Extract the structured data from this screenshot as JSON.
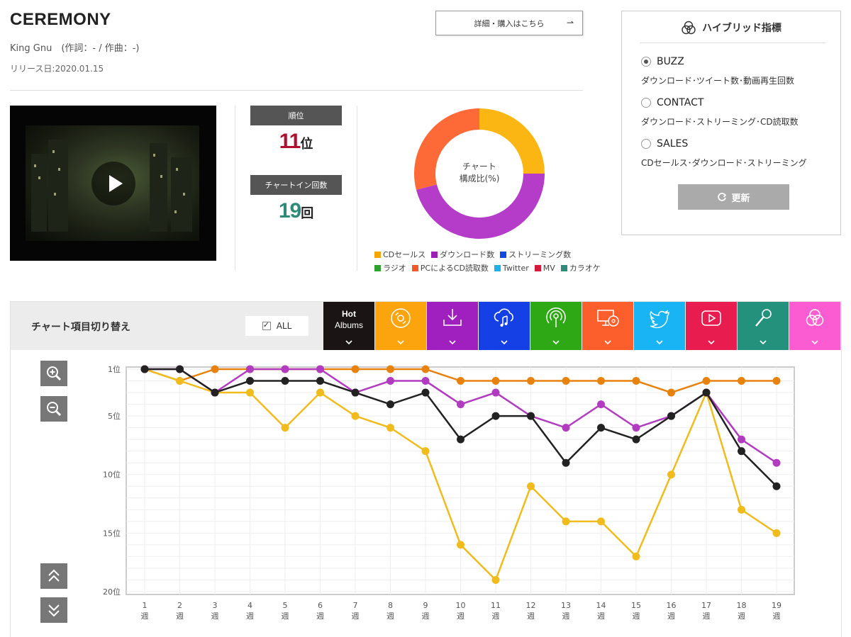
{
  "song": {
    "title": "CEREMONY",
    "artist_line": "King Gnu　(作詞：- / 作曲：-)",
    "release": "リリース日:2020.01.15",
    "buy_label": "詳細・購入はこちら",
    "buy_arrow": "⇀"
  },
  "stats": {
    "rank_label": "順位",
    "rank_value": "11",
    "rank_unit": "位",
    "rank_color": "#b01030",
    "chartin_label": "チャートイン回数",
    "chartin_value": "19",
    "chartin_unit": "回",
    "chartin_color": "#2e8b78"
  },
  "composition": {
    "center_label_1": "チャート",
    "center_label_2": "構成比(%)",
    "slices": [
      {
        "name": "CDセールス",
        "value": 25,
        "color": "#fcb614"
      },
      {
        "name": "ダウンロード数",
        "value": 46,
        "color": "#b43cc8"
      },
      {
        "name": "PCによるCD読取数",
        "value": 29,
        "color": "#fd6a38"
      }
    ],
    "legend_row1": [
      {
        "label": "CDセールス",
        "color": "#f5a400"
      },
      {
        "label": "ダウンロード数",
        "color": "#9b1fb5"
      },
      {
        "label": "ストリーミング数",
        "color": "#1048e0"
      }
    ],
    "legend_row2": [
      {
        "label": "ラジオ",
        "color": "#2ea02e"
      },
      {
        "label": "PCによるCD読取数",
        "color": "#f05a28"
      },
      {
        "label": "Twitter",
        "color": "#1eaee8"
      },
      {
        "label": "MV",
        "color": "#d6183a"
      },
      {
        "label": "カラオケ",
        "color": "#2e8b78"
      }
    ]
  },
  "hybrid": {
    "title": "ハイブリッド指標",
    "options": [
      {
        "label": "BUZZ",
        "desc": "ダウンロード･ツイート数･動画再生回数",
        "selected": true
      },
      {
        "label": "CONTACT",
        "desc": "ダウンロード･ストリーミング･CD読取数",
        "selected": false
      },
      {
        "label": "SALES",
        "desc": "CDセールス･ダウンロード･ストリーミング",
        "selected": false
      }
    ],
    "refresh_label": "更新"
  },
  "switcher": {
    "label": "チャート項目切り替え",
    "all_label": "ALL",
    "hot_line1": "Hot",
    "hot_line2": "Albums",
    "tabs": [
      {
        "icon": "hot-albums",
        "color": "#1a1414"
      },
      {
        "icon": "cd-icon",
        "color": "#fba40e"
      },
      {
        "icon": "download-icon",
        "color": "#a01fbf"
      },
      {
        "icon": "streaming-icon",
        "color": "#1440e6"
      },
      {
        "icon": "radio-icon",
        "color": "#2ea814"
      },
      {
        "icon": "pc-cd-icon",
        "color": "#fd5f2c"
      },
      {
        "icon": "twitter-icon",
        "color": "#18b4f4"
      },
      {
        "icon": "mv-icon",
        "color": "#e81c4e"
      },
      {
        "icon": "karaoke-icon",
        "color": "#24917c"
      },
      {
        "icon": "hybrid-icon",
        "color": "#fc5cd2"
      }
    ]
  },
  "chart_data": {
    "type": "line",
    "y_axis": "rank (inverted)",
    "ylim": [
      1,
      20
    ],
    "y_ticks": [
      {
        "value": 1,
        "label": "1位"
      },
      {
        "value": 5,
        "label": "5位"
      },
      {
        "value": 10,
        "label": "10位"
      },
      {
        "value": 15,
        "label": "15位"
      },
      {
        "value": 20,
        "label": "20位"
      }
    ],
    "x": [
      1,
      2,
      3,
      4,
      5,
      6,
      7,
      8,
      9,
      10,
      11,
      12,
      13,
      14,
      15,
      16,
      17,
      18,
      19
    ],
    "x_unit": "週",
    "grid": true,
    "series": [
      {
        "color": "#e8820e",
        "values": [
          1,
          2,
          1,
          1,
          1,
          1,
          1,
          1,
          1,
          2,
          2,
          2,
          2,
          2,
          2,
          3,
          2,
          2,
          2
        ]
      },
      {
        "color": "#f0bb1c",
        "values": [
          1,
          2,
          3,
          3,
          6,
          3,
          5,
          6,
          8,
          16,
          19,
          11,
          14,
          14,
          17,
          10,
          3,
          13,
          15
        ]
      },
      {
        "color": "#b23cc0",
        "values": [
          1,
          1,
          3,
          1,
          1,
          1,
          3,
          2,
          2,
          4,
          3,
          5,
          6,
          4,
          6,
          5,
          3,
          7,
          9
        ]
      },
      {
        "color": "#222222",
        "values": [
          1,
          1,
          3,
          2,
          2,
          2,
          3,
          4,
          3,
          7,
          5,
          5,
          9,
          6,
          7,
          5,
          3,
          8,
          11
        ]
      }
    ]
  }
}
